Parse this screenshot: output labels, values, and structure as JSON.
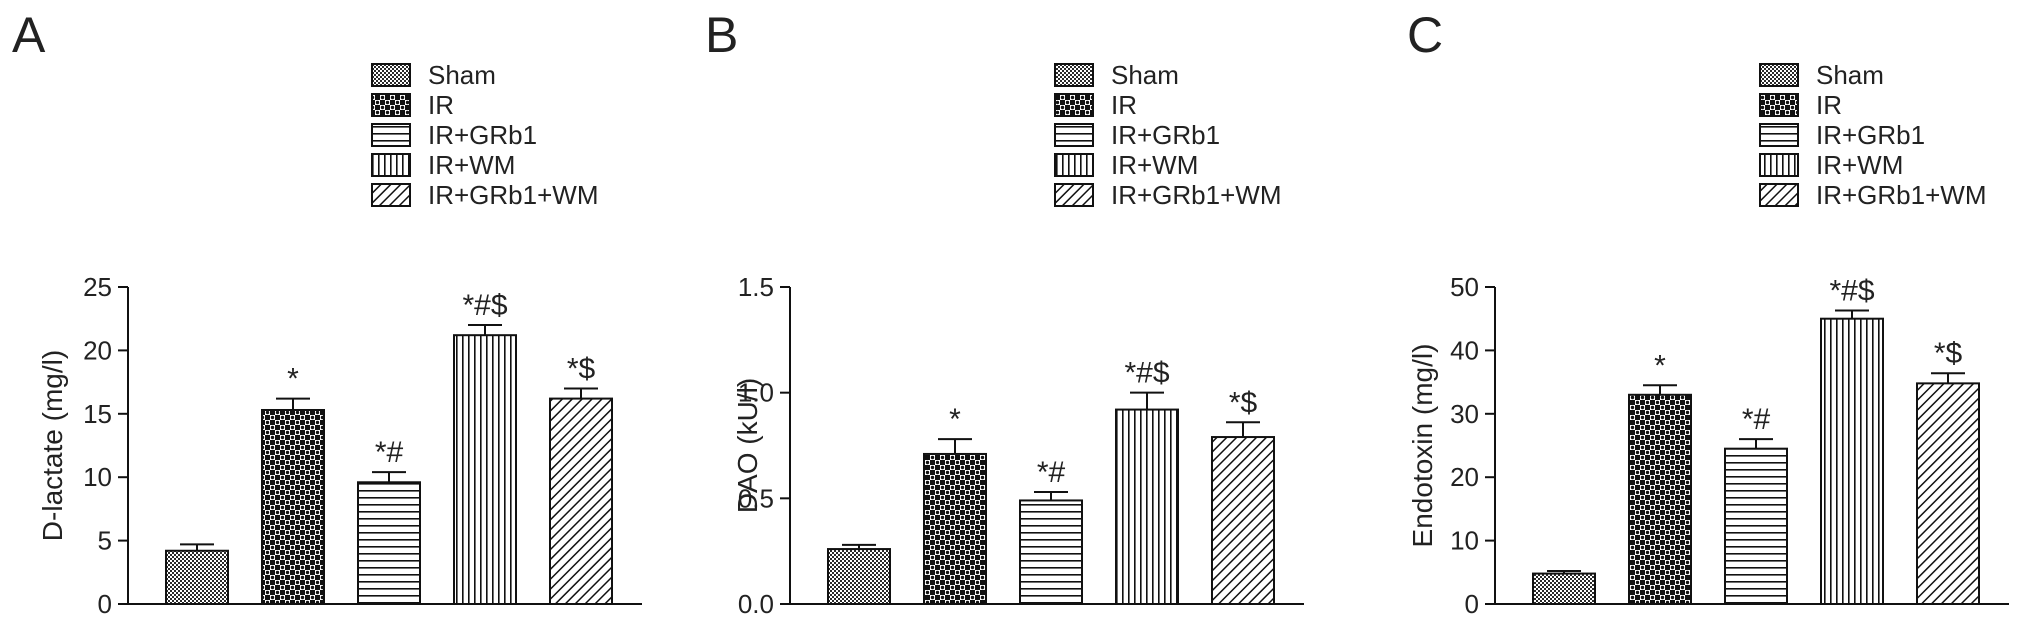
{
  "figure": {
    "legend_entries": [
      "Sham",
      "IR",
      "IR+GRb1",
      "IR+WM",
      "IR+GRb1+WM"
    ]
  },
  "chart_data": [
    {
      "type": "bar",
      "panel_label": "A",
      "ylabel": "D-lactate (mg/l)",
      "categories": [
        "Sham",
        "IR",
        "IR+GRb1",
        "IR+WM",
        "IR+GRb1+WM"
      ],
      "values": [
        4.2,
        15.3,
        9.6,
        21.2,
        16.2
      ],
      "errors": [
        0.5,
        0.9,
        0.8,
        0.8,
        0.8
      ],
      "annotations": [
        "",
        "*",
        "*#",
        "*#$",
        "*$"
      ],
      "ylim": [
        0,
        25
      ],
      "yticks": [
        0,
        5,
        10,
        15,
        20,
        25
      ],
      "ytick_labels": [
        "0",
        "5",
        "10",
        "15",
        "20",
        "25"
      ],
      "legend": "top-right",
      "grid": false
    },
    {
      "type": "bar",
      "panel_label": "B",
      "ylabel": "DAO (kU/l)",
      "categories": [
        "Sham",
        "IR",
        "IR+GRb1",
        "IR+WM",
        "IR+GRb1+WM"
      ],
      "values": [
        0.26,
        0.71,
        0.49,
        0.92,
        0.79
      ],
      "errors": [
        0.02,
        0.07,
        0.04,
        0.08,
        0.07
      ],
      "annotations": [
        "",
        "*",
        "*#",
        "*#$",
        "*$"
      ],
      "ylim": [
        0,
        1.5
      ],
      "yticks": [
        0,
        0.5,
        1.0,
        1.5
      ],
      "ytick_labels": [
        "0.0",
        "0.5",
        "1.0",
        "1.5"
      ],
      "legend": "top-right",
      "grid": false
    },
    {
      "type": "bar",
      "panel_label": "C",
      "ylabel": "Endotoxin (mg/l)",
      "categories": [
        "Sham",
        "IR",
        "IR+GRb1",
        "IR+WM",
        "IR+GRb1+WM"
      ],
      "values": [
        4.8,
        33.0,
        24.5,
        45.0,
        34.8
      ],
      "errors": [
        0.4,
        1.5,
        1.5,
        1.3,
        1.6
      ],
      "annotations": [
        "",
        "*",
        "*#",
        "*#$",
        "*$"
      ],
      "ylim": [
        0,
        50
      ],
      "yticks": [
        0,
        10,
        20,
        30,
        40,
        50
      ],
      "ytick_labels": [
        "0",
        "10",
        "20",
        "30",
        "40",
        "50"
      ],
      "legend": "top-right",
      "grid": false
    }
  ]
}
